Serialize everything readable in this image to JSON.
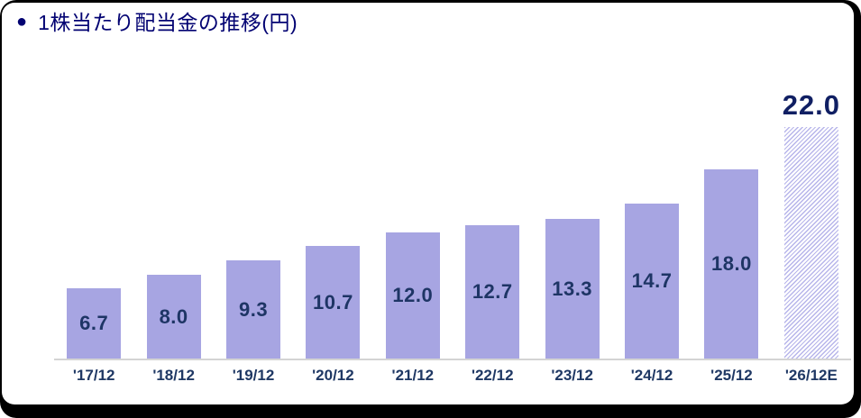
{
  "title": {
    "bullet_glyph": "●",
    "bullet_icon": "circle-bullet-icon",
    "text": "1株当たり配当金の推移(円)"
  },
  "chart_data": {
    "type": "bar",
    "title": "1株当たり配当金の推移(円)",
    "unit": "円",
    "categories": [
      "'17/12",
      "'18/12",
      "'19/12",
      "'20/12",
      "'21/12",
      "'22/12",
      "'23/12",
      "'24/12",
      "'25/12",
      "'26/12E"
    ],
    "values": [
      6.7,
      8.0,
      9.3,
      10.7,
      12.0,
      12.7,
      13.3,
      14.7,
      18.0,
      22.0
    ],
    "value_labels": [
      "6.7",
      "8.0",
      "9.3",
      "10.7",
      "12.0",
      "12.7",
      "13.3",
      "14.7",
      "18.0",
      "22.0"
    ],
    "estimated": [
      false,
      false,
      false,
      false,
      false,
      false,
      false,
      false,
      false,
      true
    ],
    "ylim": [
      0,
      22
    ],
    "grid": false,
    "legend": false,
    "label_position": "inside-center (estimated bar: above)",
    "colors": {
      "bar_fill": "#a7a5e2",
      "hatch_stripe": "#b7b5ea",
      "value_label": "#1e3565",
      "emphasis_label": "#101f63",
      "axis_label": "#1f3864",
      "axis_line": "#d4d4d4",
      "title": "#020272"
    }
  }
}
